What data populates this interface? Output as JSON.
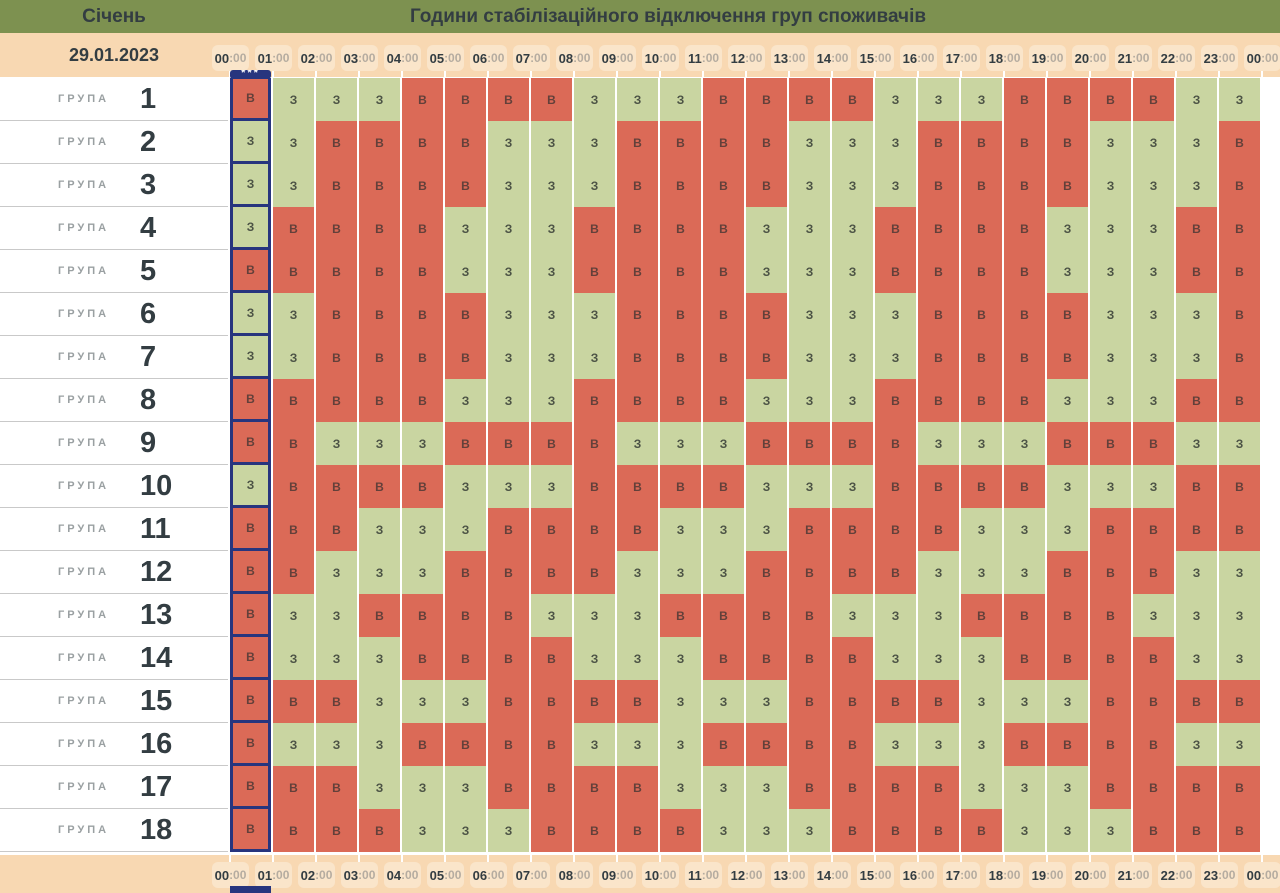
{
  "header": {
    "month_label": "Січень",
    "title": "Години стабілізаційного відключення груп споживачів",
    "date": "29.01.2023"
  },
  "time_axis": {
    "hours": [
      "00",
      "01",
      "02",
      "03",
      "04",
      "05",
      "06",
      "07",
      "08",
      "09",
      "10",
      "11",
      "12",
      "13",
      "14",
      "15",
      "16",
      "17",
      "18",
      "19",
      "20",
      "21",
      "22",
      "23",
      "00"
    ],
    "suffix": ":00"
  },
  "current_marker": "***",
  "chart_data": {
    "type": "heatmap",
    "title": "Години стабілізаційного відключення груп споживачів",
    "x_labels": [
      "00:00",
      "01:00",
      "02:00",
      "03:00",
      "04:00",
      "05:00",
      "06:00",
      "07:00",
      "08:00",
      "09:00",
      "10:00",
      "11:00",
      "12:00",
      "13:00",
      "14:00",
      "15:00",
      "16:00",
      "17:00",
      "18:00",
      "19:00",
      "20:00",
      "21:00",
      "22:00",
      "23:00",
      "00:00"
    ],
    "y_label_word": "ГРУПА",
    "y_groups": [
      "1",
      "2",
      "3",
      "4",
      "5",
      "6",
      "7",
      "8",
      "9",
      "10",
      "11",
      "12",
      "13",
      "14",
      "15",
      "16",
      "17",
      "18"
    ],
    "legend": {
      "off": "В",
      "on": "З"
    },
    "highlighted_column_index": 0,
    "rows": [
      "ВЗЗЗВВВВЗЗЗВВВВЗЗЗВВВВЗЗ",
      "ЗЗВВВВЗЗЗВВВВЗЗЗВВВВЗЗЗВ",
      "ЗЗВВВВЗЗЗВВВВЗЗЗВВВВЗЗЗВ",
      "ЗВВВВЗЗЗВВВВЗЗЗВВВВЗЗЗВВ",
      "ВВВВВЗЗЗВВВВЗЗЗВВВВЗЗЗВВ",
      "ЗЗВВВВЗЗЗВВВВЗЗЗВВВВЗЗЗВ",
      "ЗЗВВВВЗЗЗВВВВЗЗЗВВВВЗЗЗВ",
      "ВВВВВЗЗЗВВВВЗЗЗВВВВЗЗЗВВ",
      "ВВЗЗЗВВВВЗЗЗВВВВЗЗЗВВВЗЗ",
      "ЗВВВВЗЗЗВВВВЗЗЗВВВВЗЗЗВВ",
      "ВВВЗЗЗВВВВЗЗЗВВВВЗЗЗВВВВ",
      "ВВЗЗЗВВВВЗЗЗВВВВЗЗЗВВВЗЗ",
      "ВЗЗВВВВЗЗЗВВВВЗЗЗВВВВЗЗЗ",
      "ВЗЗЗВВВВЗЗЗВВВВЗЗЗВВВВЗЗ",
      "ВВВЗЗЗВВВВЗЗЗВВВВЗЗЗВВВВ",
      "ВЗЗЗВВВВЗЗЗВВВВЗЗЗВВВВЗЗ",
      "ВВВЗЗЗВВВВЗЗЗВВВВЗЗЗВВВВ",
      "ВВВВЗЗЗВВВВЗЗЗВВВВЗЗЗВВВ"
    ]
  },
  "colors": {
    "band_green": "#7d9150",
    "band_peach": "#f8d8b2",
    "chip_bg": "#fae5ca",
    "cell_off": "#db6a57",
    "cell_on": "#c9d5a1",
    "cell_off_text": "#63403a",
    "cell_on_text": "#4c5345",
    "accent_navy": "#27357e",
    "text_dark": "#333d42",
    "text_muted": "#b5aca0",
    "group_gray": "#9aa0a2",
    "separator": "#c9c9c9"
  }
}
